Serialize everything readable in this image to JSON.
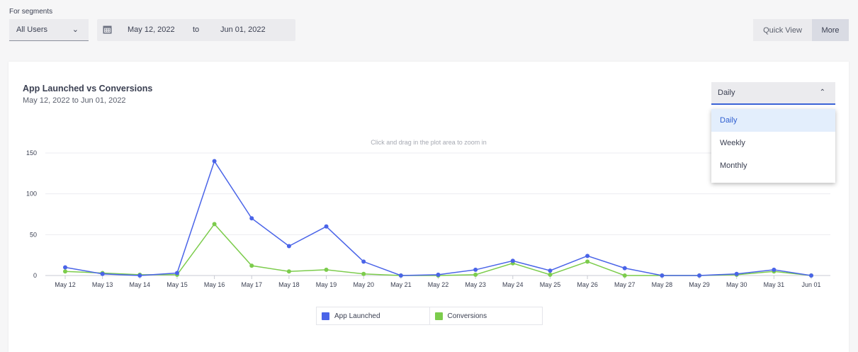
{
  "segments": {
    "label": "For segments",
    "selected": "All Users"
  },
  "date_range": {
    "start": "May 12, 2022",
    "separator": "to",
    "end": "Jun 01, 2022"
  },
  "view_toggle": {
    "quick_view": "Quick View",
    "more": "More"
  },
  "chart_card": {
    "title": "App Launched vs Conversions",
    "subtitle": "May 12, 2022 to Jun 01, 2022",
    "zoom_hint": "Click and drag in the plot area to zoom in"
  },
  "granularity": {
    "selected": "Daily",
    "options": [
      "Daily",
      "Weekly",
      "Monthly"
    ]
  },
  "colors": {
    "app_launched": "#4a64e8",
    "conversions": "#7ccc4c",
    "accent": "#3b63d6"
  },
  "chart_data": {
    "type": "line",
    "x": [
      "May 12",
      "May 13",
      "May 14",
      "May 15",
      "May 16",
      "May 17",
      "May 18",
      "May 19",
      "May 20",
      "May 21",
      "May 22",
      "May 23",
      "May 24",
      "May 25",
      "May 26",
      "May 27",
      "May 28",
      "May 29",
      "May 30",
      "May 31",
      "Jun 01"
    ],
    "yticks": [
      "0",
      "50",
      "100",
      "150"
    ],
    "ylim": [
      0,
      150
    ],
    "grid": true,
    "legend_position": "bottom",
    "series": [
      {
        "name": "App Launched",
        "values": [
          10,
          2,
          0,
          3,
          140,
          70,
          36,
          60,
          17,
          0,
          1,
          7,
          18,
          6,
          24,
          9,
          0,
          0,
          2,
          7,
          0
        ]
      },
      {
        "name": "Conversions",
        "values": [
          5,
          3,
          1,
          1,
          63,
          12,
          5,
          7,
          2,
          0,
          0,
          1,
          15,
          1,
          17,
          0,
          0,
          0,
          1,
          5,
          0
        ]
      }
    ]
  }
}
